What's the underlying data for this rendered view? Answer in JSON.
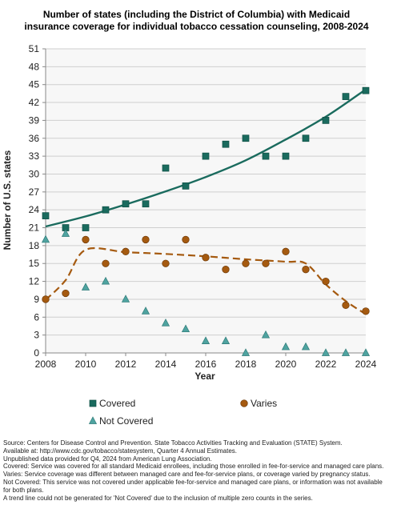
{
  "chart_data": {
    "type": "scatter",
    "title_line1": "Number of states (including the District of Columbia) with Medicaid",
    "title_line2": "insurance coverage for individual tobacco cessation counseling, 2008-2024",
    "xlabel": "Year",
    "ylabel": "Number of U.S. states",
    "xlim": [
      2008,
      2024
    ],
    "ylim": [
      0,
      51
    ],
    "x_ticks": [
      "2008",
      "2010",
      "2012",
      "2014",
      "2016",
      "2018",
      "2020",
      "2022",
      "2024"
    ],
    "y_ticks": [
      "0",
      "3",
      "6",
      "9",
      "12",
      "15",
      "18",
      "21",
      "24",
      "27",
      "30",
      "33",
      "36",
      "39",
      "42",
      "45",
      "48",
      "51"
    ],
    "grid": true,
    "x": [
      2008,
      2009,
      2010,
      2011,
      2012,
      2013,
      2014,
      2015,
      2016,
      2017,
      2018,
      2019,
      2020,
      2021,
      2022,
      2023,
      2024
    ],
    "series": [
      {
        "name": "Covered",
        "marker": "square",
        "color": "#1a6b5e",
        "values": [
          23,
          21,
          21,
          24,
          25,
          25,
          31,
          28,
          33,
          35,
          36,
          33,
          33,
          36,
          39,
          43,
          44
        ],
        "trend": {
          "style": "solid",
          "color": "#1a6b5e",
          "points": [
            [
              2008,
              21.2
            ],
            [
              2010,
              22.9
            ],
            [
              2012,
              24.9
            ],
            [
              2014,
              27.1
            ],
            [
              2016,
              29.5
            ],
            [
              2018,
              32.3
            ],
            [
              2020,
              35.8
            ],
            [
              2022,
              39.6
            ],
            [
              2024,
              44.2
            ]
          ]
        }
      },
      {
        "name": "Varies",
        "marker": "circle",
        "color": "#a55a10",
        "values": [
          9,
          10,
          19,
          15,
          17,
          19,
          15,
          19,
          16,
          14,
          15,
          15,
          17,
          14,
          12,
          8,
          7
        ],
        "trend": {
          "style": "dashed",
          "color": "#a55a10",
          "points": [
            [
              2008,
              8.9
            ],
            [
              2009,
              12.2
            ],
            [
              2010,
              17.3
            ],
            [
              2012,
              16.9
            ],
            [
              2014,
              16.6
            ],
            [
              2016,
              16.2
            ],
            [
              2018,
              15.7
            ],
            [
              2020,
              15.3
            ],
            [
              2021,
              15.0
            ],
            [
              2022,
              11.5
            ],
            [
              2023,
              8.7
            ],
            [
              2024,
              6.5
            ]
          ]
        }
      },
      {
        "name": "Not Covered",
        "marker": "triangle",
        "color": "#4fa3a0",
        "values": [
          19,
          20,
          11,
          12,
          9,
          7,
          5,
          4,
          2,
          2,
          0,
          3,
          1,
          1,
          0,
          0,
          0
        ]
      }
    ]
  },
  "footnotes": [
    "Source: Centers for Disease Control and Prevention. State Tobacco Activities Tracking and Evaluation (STATE) System.",
    "Available at: http://www.cdc.gov/tobacco/statesystem, Quarter 4 Annual Estimates.",
    "Unpublished data provided for Q4, 2024 from American Lung Association.",
    "Covered: Service was covered for all standard Medicaid enrollees, including those enrolled in fee-for-service and managed care plans.",
    "Varies: Service coverage was different between managed care and fee-for-service plans, or coverage varied by pregnancy status.",
    "Not Covered: This service was not covered under applicable fee-for-service and managed care plans, or information was not available for both plans.",
    "A trend line could not be generated for 'Not Covered' due to the inclusion of multiple zero counts in the series."
  ]
}
